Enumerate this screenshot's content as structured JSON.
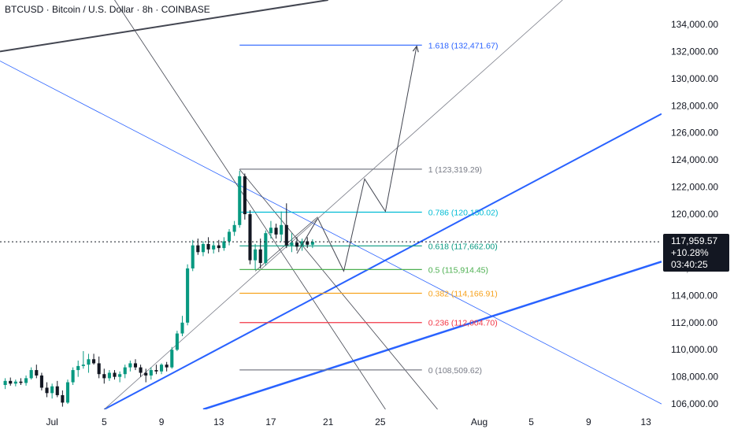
{
  "header": {
    "title": "BTCUSD · Bitcoin / U.S. Dollar · 8h · COINBASE"
  },
  "price_tag": {
    "price": "117,959.57",
    "change": "+10.28%",
    "countdown": "03:40:25"
  },
  "chart_data": {
    "type": "candlestick",
    "symbol": "BTCUSD",
    "interval": "8h",
    "ylim": [
      105600,
      135800
    ],
    "xlim": [
      -1,
      126
    ],
    "grid": false,
    "y_ticks": [
      "106,000.00",
      "108,000.00",
      "110,000.00",
      "112,000.00",
      "114,000.00",
      "116,000.00",
      "118,000.00",
      "120,000.00",
      "122,000.00",
      "124,000.00",
      "126,000.00",
      "128,000.00",
      "130,000.00",
      "132,000.00",
      "134,000.00"
    ],
    "y_tick_values": [
      106000,
      108000,
      110000,
      112000,
      114000,
      116000,
      118000,
      120000,
      122000,
      124000,
      126000,
      128000,
      130000,
      132000,
      134000
    ],
    "x_ticks": [
      {
        "label": "Jul",
        "index": 9
      },
      {
        "label": "5",
        "index": 19
      },
      {
        "label": "9",
        "index": 30
      },
      {
        "label": "13",
        "index": 41
      },
      {
        "label": "17",
        "index": 51
      },
      {
        "label": "21",
        "index": 62
      },
      {
        "label": "25",
        "index": 72
      },
      {
        "label": "Aug",
        "index": 91
      },
      {
        "label": "5",
        "index": 101
      },
      {
        "label": "9",
        "index": 112
      },
      {
        "label": "13",
        "index": 123
      }
    ],
    "colors": {
      "up": "#089981",
      "down": "#131722"
    },
    "candles": [
      {
        "o": 107400,
        "h": 107900,
        "l": 107100,
        "c": 107700
      },
      {
        "o": 107700,
        "h": 107950,
        "l": 107350,
        "c": 107500
      },
      {
        "o": 107500,
        "h": 107800,
        "l": 107300,
        "c": 107650
      },
      {
        "o": 107650,
        "h": 107900,
        "l": 107400,
        "c": 107550
      },
      {
        "o": 107550,
        "h": 108100,
        "l": 107350,
        "c": 107900
      },
      {
        "o": 107900,
        "h": 108700,
        "l": 107800,
        "c": 108500
      },
      {
        "o": 108500,
        "h": 108900,
        "l": 107900,
        "c": 108100
      },
      {
        "o": 108100,
        "h": 108300,
        "l": 107000,
        "c": 107200
      },
      {
        "o": 107200,
        "h": 107600,
        "l": 106500,
        "c": 106800
      },
      {
        "o": 106800,
        "h": 107500,
        "l": 106400,
        "c": 107300
      },
      {
        "o": 107300,
        "h": 107700,
        "l": 106500,
        "c": 106650
      },
      {
        "o": 106650,
        "h": 107000,
        "l": 105800,
        "c": 106100
      },
      {
        "o": 106100,
        "h": 107800,
        "l": 106000,
        "c": 107600
      },
      {
        "o": 107600,
        "h": 108700,
        "l": 107400,
        "c": 108500
      },
      {
        "o": 108500,
        "h": 109200,
        "l": 108000,
        "c": 108800
      },
      {
        "o": 108800,
        "h": 109900,
        "l": 108600,
        "c": 108900
      },
      {
        "o": 108900,
        "h": 109700,
        "l": 108300,
        "c": 109300
      },
      {
        "o": 109300,
        "h": 109700,
        "l": 108900,
        "c": 109000
      },
      {
        "o": 109000,
        "h": 109500,
        "l": 107900,
        "c": 108200
      },
      {
        "o": 108200,
        "h": 108600,
        "l": 107500,
        "c": 107900
      },
      {
        "o": 107900,
        "h": 108500,
        "l": 107700,
        "c": 108300
      },
      {
        "o": 108300,
        "h": 108500,
        "l": 107800,
        "c": 108000
      },
      {
        "o": 108000,
        "h": 108400,
        "l": 107600,
        "c": 108200
      },
      {
        "o": 108200,
        "h": 108900,
        "l": 107900,
        "c": 108700
      },
      {
        "o": 108700,
        "h": 109200,
        "l": 108400,
        "c": 109000
      },
      {
        "o": 109000,
        "h": 109300,
        "l": 108500,
        "c": 108700
      },
      {
        "o": 108700,
        "h": 108900,
        "l": 108000,
        "c": 108300
      },
      {
        "o": 108300,
        "h": 108600,
        "l": 107600,
        "c": 108100
      },
      {
        "o": 108100,
        "h": 108700,
        "l": 107800,
        "c": 108500
      },
      {
        "o": 108500,
        "h": 108900,
        "l": 108200,
        "c": 108400
      },
      {
        "o": 108400,
        "h": 109000,
        "l": 108200,
        "c": 108900
      },
      {
        "o": 108900,
        "h": 109100,
        "l": 108400,
        "c": 108700
      },
      {
        "o": 108700,
        "h": 110200,
        "l": 108600,
        "c": 110000
      },
      {
        "o": 110000,
        "h": 111400,
        "l": 109900,
        "c": 111200
      },
      {
        "o": 111200,
        "h": 112500,
        "l": 111000,
        "c": 112000
      },
      {
        "o": 112000,
        "h": 116300,
        "l": 111800,
        "c": 116000
      },
      {
        "o": 116000,
        "h": 118100,
        "l": 115800,
        "c": 117700
      },
      {
        "o": 117700,
        "h": 118200,
        "l": 117000,
        "c": 117200
      },
      {
        "o": 117200,
        "h": 118000,
        "l": 116900,
        "c": 117800
      },
      {
        "o": 117800,
        "h": 118300,
        "l": 117100,
        "c": 117400
      },
      {
        "o": 117400,
        "h": 118000,
        "l": 117100,
        "c": 117700
      },
      {
        "o": 117700,
        "h": 118100,
        "l": 117200,
        "c": 117500
      },
      {
        "o": 117500,
        "h": 118300,
        "l": 117300,
        "c": 118000
      },
      {
        "o": 118000,
        "h": 118900,
        "l": 117700,
        "c": 118700
      },
      {
        "o": 118700,
        "h": 119500,
        "l": 118400,
        "c": 119200
      },
      {
        "o": 119200,
        "h": 123200,
        "l": 119000,
        "c": 122800
      },
      {
        "o": 122800,
        "h": 123000,
        "l": 119600,
        "c": 120000
      },
      {
        "o": 120000,
        "h": 120300,
        "l": 116300,
        "c": 116600
      },
      {
        "o": 116600,
        "h": 117800,
        "l": 115900,
        "c": 117400
      },
      {
        "o": 117400,
        "h": 118200,
        "l": 116000,
        "c": 116400
      },
      {
        "o": 116400,
        "h": 118800,
        "l": 116200,
        "c": 118600
      },
      {
        "o": 118600,
        "h": 119500,
        "l": 118200,
        "c": 119000
      },
      {
        "o": 119000,
        "h": 119300,
        "l": 118200,
        "c": 118500
      },
      {
        "o": 118500,
        "h": 120200,
        "l": 118000,
        "c": 119200
      },
      {
        "o": 119200,
        "h": 120800,
        "l": 117500,
        "c": 117700
      },
      {
        "o": 117700,
        "h": 118600,
        "l": 117200,
        "c": 117900
      },
      {
        "o": 117900,
        "h": 118300,
        "l": 117300,
        "c": 117600
      },
      {
        "o": 117600,
        "h": 118200,
        "l": 117300,
        "c": 118000
      },
      {
        "o": 118000,
        "h": 118300,
        "l": 117500,
        "c": 117750
      },
      {
        "o": 117750,
        "h": 118150,
        "l": 117500,
        "c": 117960
      }
    ],
    "fibonacci": {
      "levels": [
        {
          "ratio": "1.618",
          "price": 132471.67,
          "label": "1.618 (132,471.67)",
          "color": "#2962ff"
        },
        {
          "ratio": "1",
          "price": 123319.29,
          "label": "1 (123,319.29)",
          "color": "#787b86"
        },
        {
          "ratio": "0.786",
          "price": 120150.02,
          "label": "0.786 (120,150.02)",
          "color": "#00bcd4"
        },
        {
          "ratio": "0.618",
          "price": 117662.0,
          "label": "0.618 (117,662.00)",
          "color": "#089981"
        },
        {
          "ratio": "0.5",
          "price": 115914.45,
          "label": "0.5 (115,914.45)",
          "color": "#4caf50"
        },
        {
          "ratio": "0.382",
          "price": 114166.91,
          "label": "0.382 (114,166.91)",
          "color": "#f7a21c"
        },
        {
          "ratio": "0.236",
          "price": 112004.7,
          "label": "0.236 (112,004.70)",
          "color": "#f23645"
        },
        {
          "ratio": "0",
          "price": 108509.62,
          "label": "0 (108,509.62)",
          "color": "#787b86"
        }
      ],
      "start_index": 45,
      "end_index": 80
    },
    "trendlines": [
      {
        "x1": -1,
        "y1": 132000,
        "x2": 62,
        "y2": 135800,
        "color": "#434651",
        "width": 2
      },
      {
        "x1": -1,
        "y1": 131300,
        "x2": 126,
        "y2": 106000,
        "color": "#2962ff",
        "width": 0.8
      },
      {
        "x1": 21,
        "y1": 135800,
        "x2": 73,
        "y2": 105600,
        "color": "#434651",
        "width": 0.8
      },
      {
        "x1": 19,
        "y1": 105600,
        "x2": 126,
        "y2": 127400,
        "color": "#2962ff",
        "width": 2
      },
      {
        "x1": 38,
        "y1": 105600,
        "x2": 126,
        "y2": 116500,
        "color": "#2962ff",
        "width": 2.5
      },
      {
        "x1": 19,
        "y1": 105600,
        "x2": 107,
        "y2": 135800,
        "color": "#787b86",
        "width": 0.8
      },
      {
        "x1": 45,
        "y1": 123300,
        "x2": 83,
        "y2": 105600,
        "color": "#434651",
        "width": 0.8
      },
      {
        "x1": 48,
        "y1": 115800,
        "x2": 60,
        "y2": 119800,
        "color": "#434651",
        "width": 0.8
      }
    ],
    "projection": [
      {
        "index": 56,
        "price": 117100
      },
      {
        "index": 60,
        "price": 119700
      },
      {
        "index": 65,
        "price": 115800
      },
      {
        "index": 69,
        "price": 122600
      },
      {
        "index": 73,
        "price": 120200
      },
      {
        "index": 79,
        "price": 132400
      }
    ],
    "last_price": 117959.57
  }
}
